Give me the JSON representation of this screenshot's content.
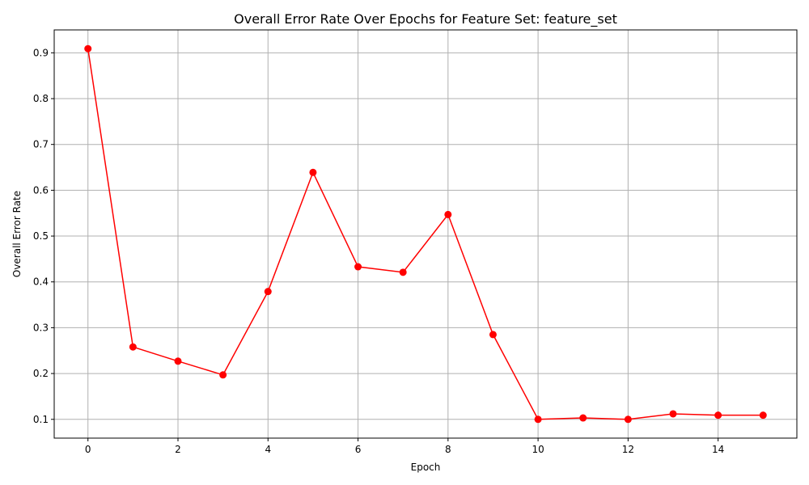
{
  "chart_data": {
    "type": "line",
    "title": "Overall Error Rate Over Epochs for Feature Set: feature_set",
    "xlabel": "Epoch",
    "ylabel": "Overall Error Rate",
    "x": [
      0,
      1,
      2,
      3,
      4,
      5,
      6,
      7,
      8,
      9,
      10,
      11,
      12,
      13,
      14,
      15
    ],
    "series": [
      {
        "values": [
          0.909,
          0.258,
          0.227,
          0.197,
          0.379,
          0.639,
          0.433,
          0.421,
          0.547,
          0.285,
          0.1,
          0.103,
          0.1,
          0.112,
          0.109,
          0.109
        ],
        "color": "#ff0000",
        "marker": "circle"
      }
    ],
    "xlim": [
      -0.75,
      15.75
    ],
    "ylim": [
      0.059,
      0.95
    ],
    "xticks": [
      0,
      2,
      4,
      6,
      8,
      10,
      12,
      14
    ],
    "xtick_labels": [
      "0",
      "2",
      "4",
      "6",
      "8",
      "10",
      "12",
      "14"
    ],
    "yticks": [
      0.1,
      0.2,
      0.3,
      0.4,
      0.5,
      0.6,
      0.7,
      0.8,
      0.9
    ],
    "ytick_labels": [
      "0.1",
      "0.2",
      "0.3",
      "0.4",
      "0.5",
      "0.6",
      "0.7",
      "0.8",
      "0.9"
    ],
    "grid": true,
    "legend": "none"
  }
}
